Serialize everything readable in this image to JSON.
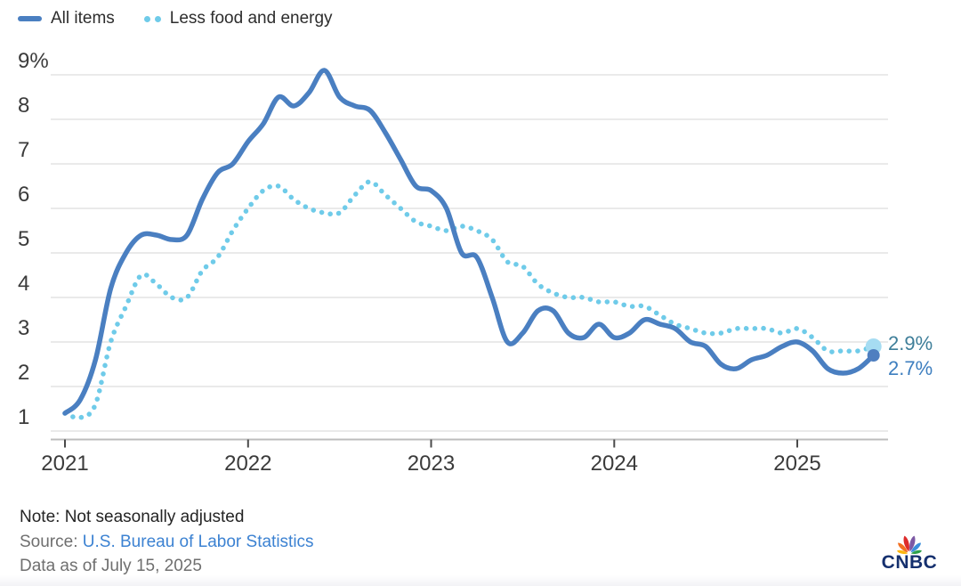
{
  "legend": {
    "items": [
      {
        "label": "All items",
        "color": "#4a7fc1",
        "style": "solid"
      },
      {
        "label": "Less food and energy",
        "color": "#6fcbe9",
        "style": "dotted"
      }
    ]
  },
  "footer": {
    "note": "Note: Not seasonally adjusted",
    "source_prefix": "Source:",
    "source_link": "U.S. Bureau of Labor Statistics",
    "data_as_of": "Data as of July 15, 2025"
  },
  "branding": {
    "logo_text": "CNBC",
    "wordmark_color": "#15306e",
    "feather_colors": [
      "#FCB711",
      "#F37021",
      "#DD2C2C",
      "#7C58A4",
      "#3C8FDC",
      "#2EA14A"
    ]
  },
  "chart_data": {
    "type": "line",
    "title": "",
    "xlabel": "",
    "ylabel": "",
    "unit": "percent (year-over-year CPI change)",
    "grid": "horizontal",
    "legend_position": "top-left",
    "ylim": [
      1,
      9
    ],
    "y_ticks": [
      9,
      8,
      7,
      6,
      5,
      4,
      3,
      2,
      1
    ],
    "y_tick_labels": [
      "9%",
      "8",
      "7",
      "6",
      "5",
      "4",
      "3",
      "2",
      "1"
    ],
    "x_tick_labels": [
      "2021",
      "2022",
      "2023",
      "2024",
      "2025"
    ],
    "x": [
      "2021-01",
      "2021-02",
      "2021-03",
      "2021-04",
      "2021-05",
      "2021-06",
      "2021-07",
      "2021-08",
      "2021-09",
      "2021-10",
      "2021-11",
      "2021-12",
      "2022-01",
      "2022-02",
      "2022-03",
      "2022-04",
      "2022-05",
      "2022-06",
      "2022-07",
      "2022-08",
      "2022-09",
      "2022-10",
      "2022-11",
      "2022-12",
      "2023-01",
      "2023-02",
      "2023-03",
      "2023-04",
      "2023-05",
      "2023-06",
      "2023-07",
      "2023-08",
      "2023-09",
      "2023-10",
      "2023-11",
      "2023-12",
      "2024-01",
      "2024-02",
      "2024-03",
      "2024-04",
      "2024-05",
      "2024-06",
      "2024-07",
      "2024-08",
      "2024-09",
      "2024-10",
      "2024-11",
      "2024-12",
      "2025-01",
      "2025-02",
      "2025-03",
      "2025-04",
      "2025-05",
      "2025-06"
    ],
    "series": [
      {
        "name": "All items",
        "style": "solid",
        "color": "#4a7fc1",
        "end_dot_color": "#4f7fc0",
        "end_label": "2.7%",
        "end_label_color": "#3d7ebf",
        "values": [
          1.4,
          1.7,
          2.6,
          4.2,
          5.0,
          5.4,
          5.4,
          5.3,
          5.4,
          6.2,
          6.8,
          7.0,
          7.5,
          7.9,
          8.5,
          8.3,
          8.6,
          9.1,
          8.5,
          8.3,
          8.2,
          7.7,
          7.1,
          6.5,
          6.4,
          6.0,
          5.0,
          4.9,
          4.0,
          3.0,
          3.2,
          3.7,
          3.7,
          3.2,
          3.1,
          3.4,
          3.1,
          3.2,
          3.5,
          3.4,
          3.3,
          3.0,
          2.9,
          2.5,
          2.4,
          2.6,
          2.7,
          2.9,
          3.0,
          2.8,
          2.4,
          2.3,
          2.4,
          2.7
        ]
      },
      {
        "name": "Less food and energy",
        "style": "dotted",
        "color": "#6fcbe9",
        "end_dot_color": "#a6dcf2",
        "end_label": "2.9%",
        "end_label_color": "#3e7e99",
        "values": [
          1.4,
          1.3,
          1.6,
          3.0,
          3.8,
          4.5,
          4.3,
          4.0,
          4.0,
          4.6,
          4.9,
          5.5,
          6.0,
          6.4,
          6.5,
          6.2,
          6.0,
          5.9,
          5.9,
          6.3,
          6.6,
          6.3,
          6.0,
          5.7,
          5.6,
          5.5,
          5.6,
          5.5,
          5.3,
          4.8,
          4.7,
          4.3,
          4.1,
          4.0,
          4.0,
          3.9,
          3.9,
          3.8,
          3.8,
          3.6,
          3.4,
          3.3,
          3.2,
          3.2,
          3.3,
          3.3,
          3.3,
          3.2,
          3.3,
          3.1,
          2.8,
          2.8,
          2.8,
          2.9
        ]
      }
    ]
  }
}
